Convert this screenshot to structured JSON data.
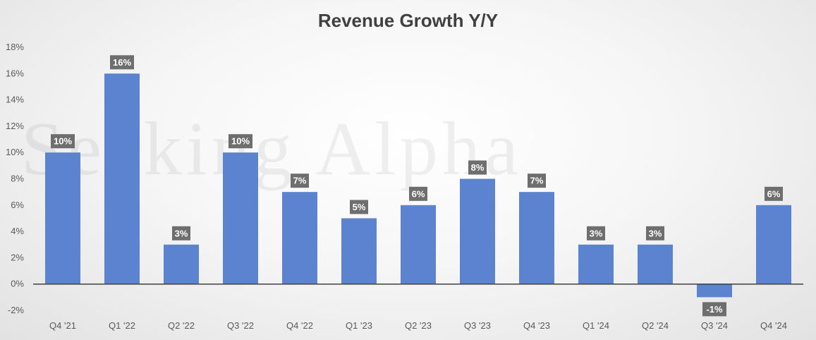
{
  "watermark": "Seeking Alpha",
  "chart_data": {
    "type": "bar",
    "title": "Revenue Growth Y/Y",
    "xlabel": "",
    "ylabel": "",
    "categories": [
      "Q4 '21",
      "Q1 '22",
      "Q2 '22",
      "Q3 '22",
      "Q4 '22",
      "Q1 '23",
      "Q2 '23",
      "Q3 '23",
      "Q4 '23",
      "Q1 '24",
      "Q2 '24",
      "Q3 '24",
      "Q4 '24"
    ],
    "values": [
      10,
      16,
      3,
      10,
      7,
      5,
      6,
      8,
      7,
      3,
      3,
      -1,
      6
    ],
    "data_labels": [
      "10%",
      "16%",
      "3%",
      "10%",
      "7%",
      "5%",
      "6%",
      "8%",
      "7%",
      "3%",
      "3%",
      "-1%",
      "6%"
    ],
    "ylim": [
      -2,
      18
    ],
    "yticks": [
      -2,
      0,
      2,
      4,
      6,
      8,
      10,
      12,
      14,
      16,
      18
    ],
    "ytick_labels": [
      "-2%",
      "0%",
      "2%",
      "4%",
      "6%",
      "8%",
      "10%",
      "12%",
      "14%",
      "16%",
      "18%"
    ],
    "grid": false,
    "legend": "none",
    "colors": {
      "bar": "#5b83cf",
      "label_bg": "#6e6e6e",
      "label_text": "#ffffff",
      "axis": "#404040"
    }
  }
}
